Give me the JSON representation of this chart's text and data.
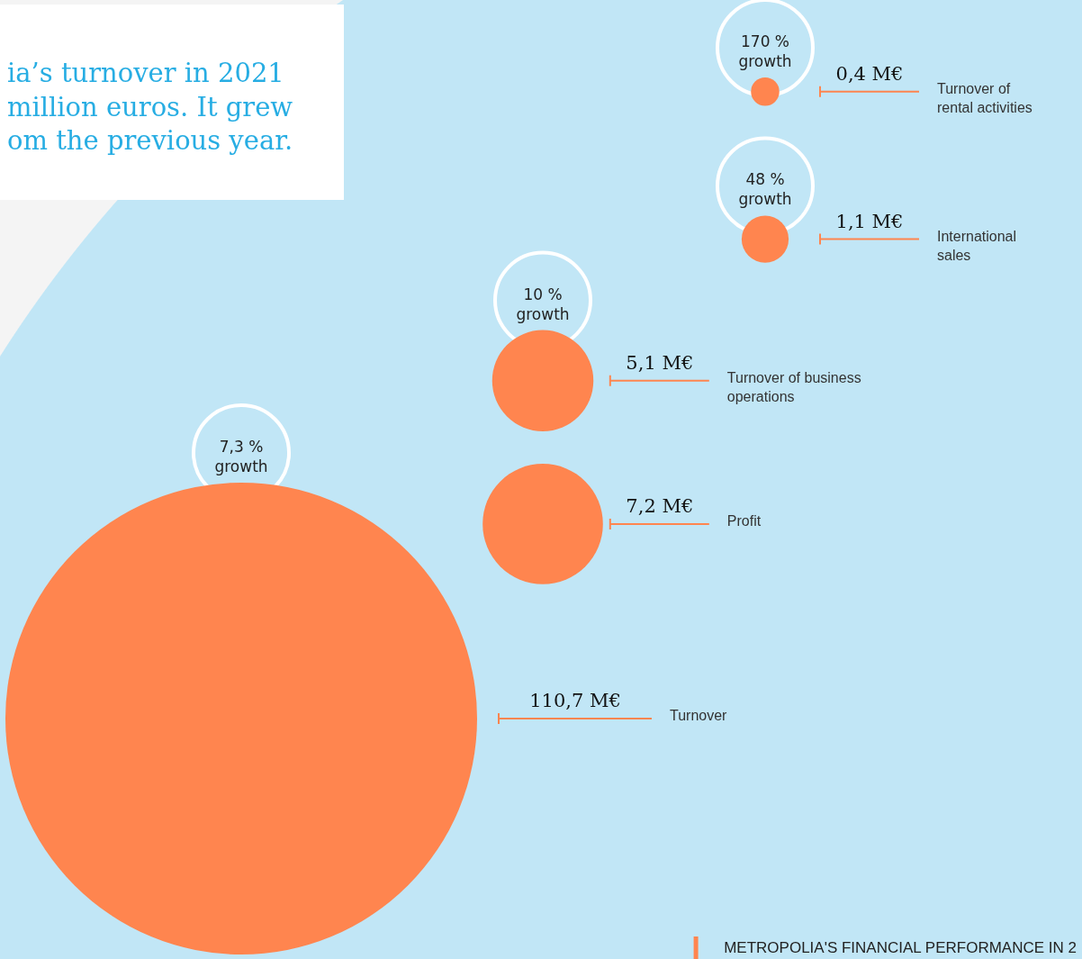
{
  "chart_data": {
    "type": "other",
    "title": "ia’s turnover in 2021\nmillion euros. It grew\nom the previous year.",
    "categories": [
      "Turnover of\nrental activities",
      "International\nsales",
      "Turnover of business\noperations",
      "Profit",
      "Turnover"
    ],
    "series": [
      {
        "color": "#ff854f",
        "values": [
          0.4,
          1.1,
          5.1,
          7.2,
          110.7
        ],
        "value_labels": [
          "0,4 M€",
          "1,1 M€",
          "5,1 M€",
          "7,2 M€",
          "110,7 M€"
        ]
      },
      {
        "color": "#ffffff",
        "values": [
          170,
          48,
          10,
          null,
          7.3
        ],
        "value_labels": [
          "170 %\ngrowth",
          "48 %\ngrowth",
          "10 %\ngrowth",
          null,
          "7,3 %\ngrowth"
        ]
      }
    ],
    "annotations": [
      "METROPOLIA'S FINANCIAL PERFORMANCE IN 2"
    ]
  }
}
